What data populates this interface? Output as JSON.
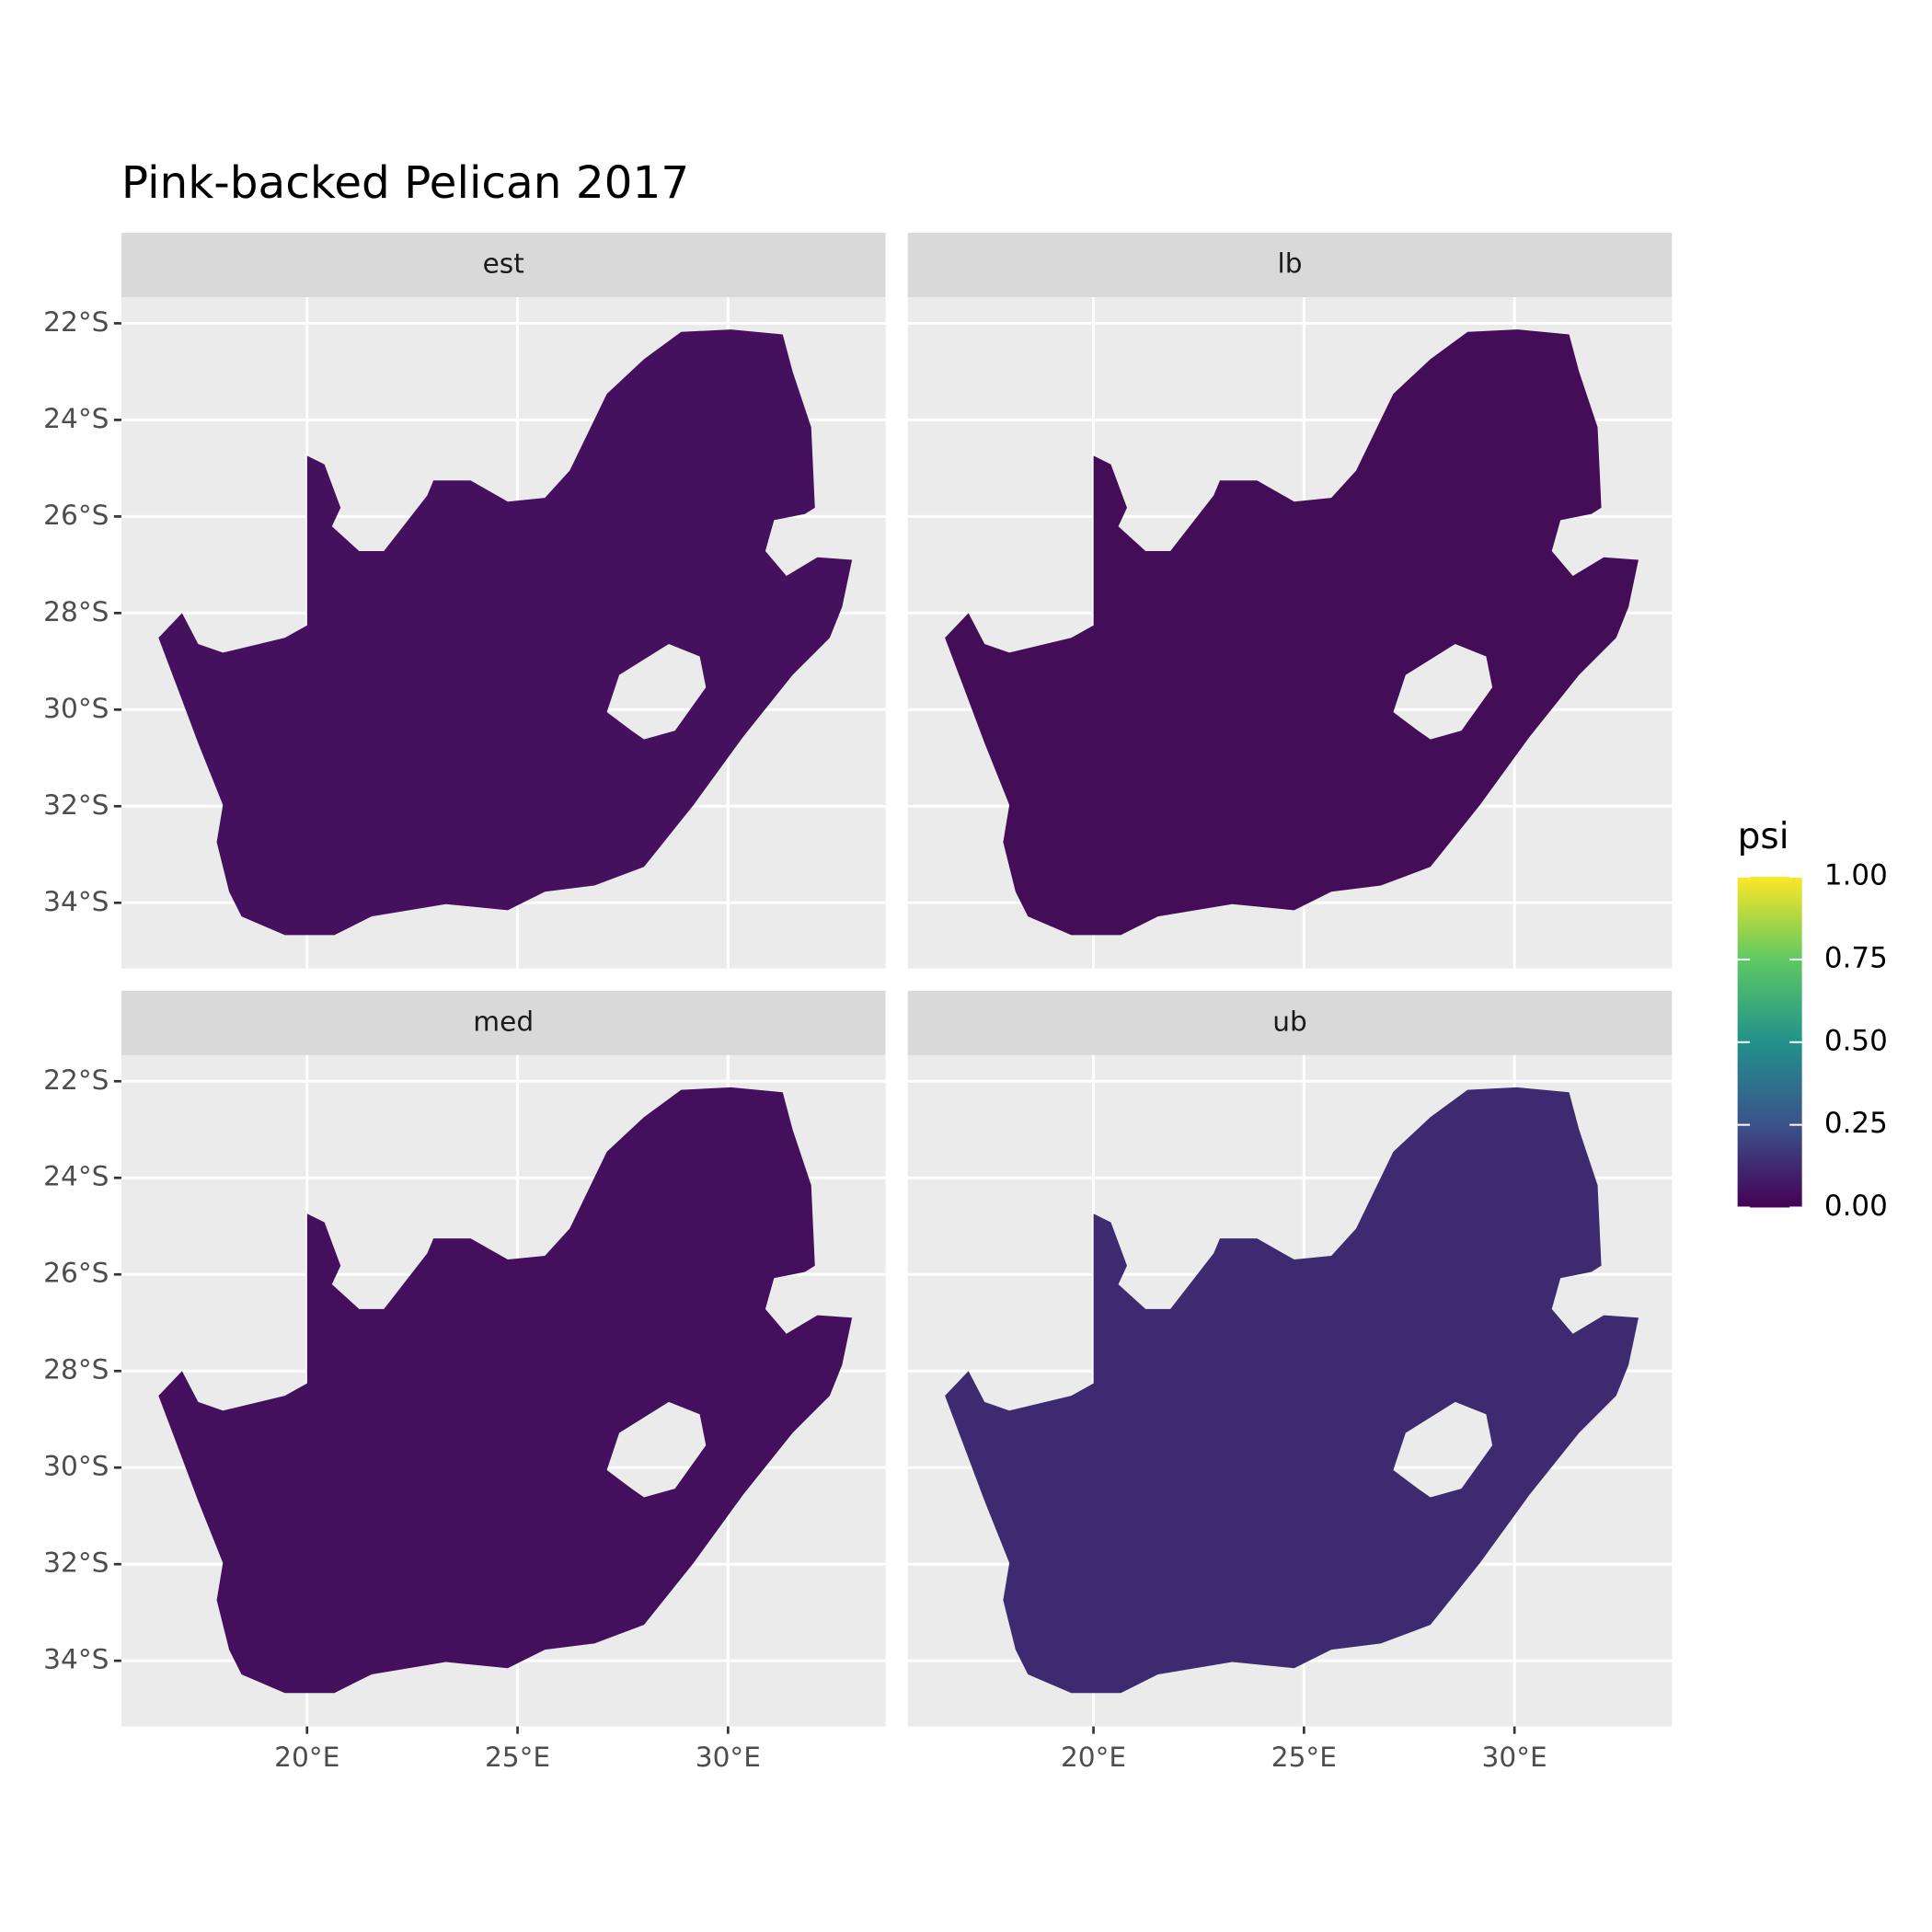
{
  "chart_data": {
    "type": "map",
    "title": "Pink-backed Pelican 2017",
    "facets": [
      "est",
      "lb",
      "med",
      "ub"
    ],
    "xlim": [
      15.59,
      33.74
    ],
    "ylim": [
      -35.36,
      -21.46
    ],
    "xticks": [
      {
        "value": 20,
        "label": "20°E"
      },
      {
        "value": 25,
        "label": "25°E"
      },
      {
        "value": 30,
        "label": "30°E"
      }
    ],
    "yticks": [
      {
        "value": -22,
        "label": "22°S"
      },
      {
        "value": -24,
        "label": "24°S"
      },
      {
        "value": -26,
        "label": "26°S"
      },
      {
        "value": -28,
        "label": "28°S"
      },
      {
        "value": -30,
        "label": "30°S"
      },
      {
        "value": -32,
        "label": "32°S"
      },
      {
        "value": -34,
        "label": "34°S"
      }
    ],
    "legend": {
      "title": "psi",
      "lim": [
        0,
        1
      ],
      "colors": [
        "#440154",
        "#3b528b",
        "#21918c",
        "#5ec962",
        "#fde725"
      ],
      "ticks": [
        {
          "value": 0,
          "label": "0.00"
        },
        {
          "value": 0.25,
          "label": "0.25"
        },
        {
          "value": 0.5,
          "label": "0.50"
        },
        {
          "value": 0.75,
          "label": "0.75"
        },
        {
          "value": 1,
          "label": "1.00"
        }
      ]
    }
  }
}
